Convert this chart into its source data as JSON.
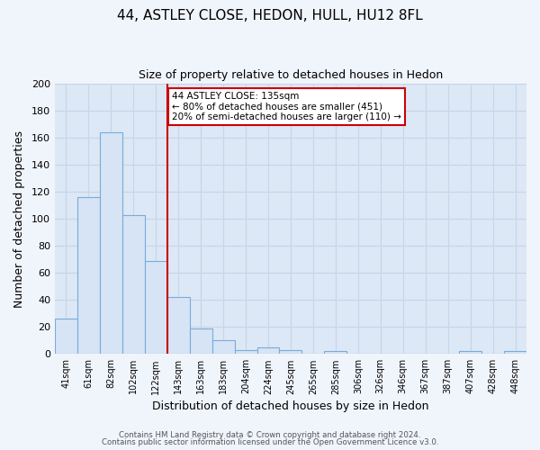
{
  "title_line1": "44, ASTLEY CLOSE, HEDON, HULL, HU12 8FL",
  "title_line2": "Size of property relative to detached houses in Hedon",
  "xlabel": "Distribution of detached houses by size in Hedon",
  "ylabel": "Number of detached properties",
  "bar_labels": [
    "41sqm",
    "61sqm",
    "82sqm",
    "102sqm",
    "122sqm",
    "143sqm",
    "163sqm",
    "183sqm",
    "204sqm",
    "224sqm",
    "245sqm",
    "265sqm",
    "285sqm",
    "306sqm",
    "326sqm",
    "346sqm",
    "367sqm",
    "387sqm",
    "407sqm",
    "428sqm",
    "448sqm"
  ],
  "bar_values": [
    26,
    116,
    164,
    103,
    69,
    42,
    19,
    10,
    3,
    5,
    3,
    0,
    2,
    0,
    0,
    0,
    0,
    0,
    2,
    0,
    2
  ],
  "bar_color": "#d6e4f5",
  "bar_edge_color": "#7aabdb",
  "vline_x": 4.0,
  "vline_color": "#cc0000",
  "ylim": [
    0,
    200
  ],
  "yticks": [
    0,
    20,
    40,
    60,
    80,
    100,
    120,
    140,
    160,
    180,
    200
  ],
  "annotation_title": "44 ASTLEY CLOSE: 135sqm",
  "annotation_line1": "← 80% of detached houses are smaller (451)",
  "annotation_line2": "20% of semi-detached houses are larger (110) →",
  "annotation_box_facecolor": "#ffffff",
  "annotation_box_edgecolor": "#cc0000",
  "grid_color": "#c8d4e8",
  "plot_bg_color": "#dce8f5",
  "fig_bg_color": "#f0f4fb",
  "footer_line1": "Contains HM Land Registry data © Crown copyright and database right 2024.",
  "footer_line2": "Contains public sector information licensed under the Open Government Licence v3.0."
}
